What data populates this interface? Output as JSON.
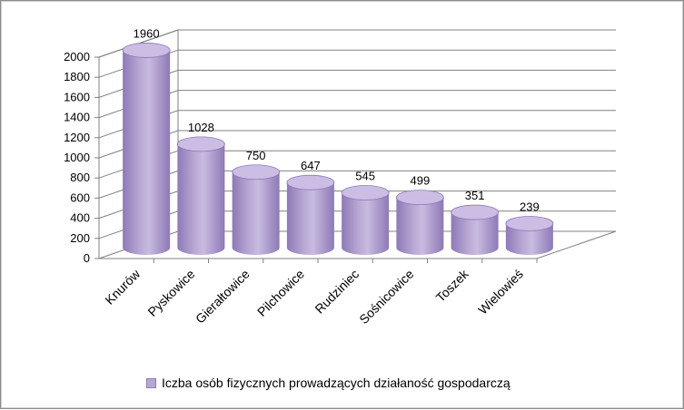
{
  "chart_data": {
    "type": "bar",
    "style": "3d-cylinder",
    "categories": [
      "Knurów",
      "Pyskowice",
      "Gierałtowice",
      "Pilchowice",
      "Rudziniec",
      "Sośnicowice",
      "Toszek",
      "Wielowieś"
    ],
    "series": [
      {
        "name": "Iczba osób fizycznych prowadzących działaność gospodarczą",
        "values": [
          1960,
          1028,
          750,
          647,
          545,
          499,
          351,
          239
        ]
      }
    ],
    "data_labels": [
      "1960",
      "1028",
      "750",
      "647",
      "545",
      "499",
      "351",
      "239"
    ],
    "yticks": [
      "0",
      "200",
      "400",
      "600",
      "800",
      "1000",
      "1200",
      "1400",
      "1600",
      "1800",
      "2000"
    ],
    "ylim": [
      0,
      2000
    ],
    "grid": true,
    "legend_position": "bottom",
    "colors": {
      "bar": "#b7a7d3",
      "bar_dark": "#8e79b6",
      "bar_top": "#cbbde3",
      "grid": "#808080"
    }
  },
  "legend": {
    "label": "Iczba osób fizycznych prowadzących działaność gospodarczą"
  }
}
